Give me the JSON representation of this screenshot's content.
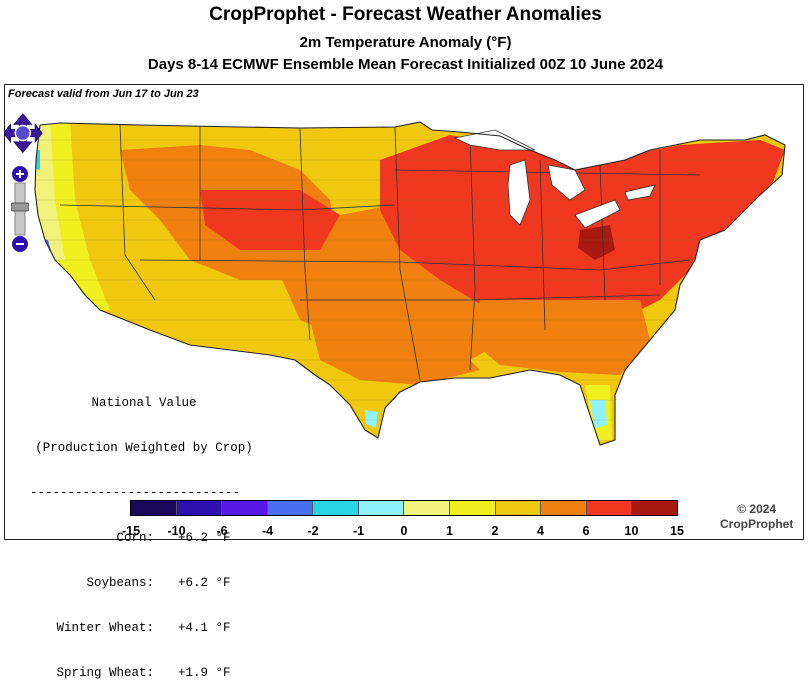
{
  "header": {
    "title": "CropProphet - Forecast Weather Anomalies",
    "variable": "2m Temperature Anomaly (°F)",
    "forecast": "Days 8-14 ECMWF Ensemble Mean Forecast Initialized 00Z 10 June 2024"
  },
  "map": {
    "valid_text": "Forecast valid from Jun 17 to Jun 23"
  },
  "national": {
    "heading1": "National Value",
    "heading2": "(Production Weighted by Crop)",
    "divider": "----------------------------",
    "rows": [
      {
        "name": "Corn:",
        "value": "+6.2 °F"
      },
      {
        "name": "Soybeans:",
        "value": "+6.2 °F"
      },
      {
        "name": "Winter Wheat:",
        "value": "+4.1 °F"
      },
      {
        "name": "Spring Wheat:",
        "value": "+1.9 °F"
      }
    ]
  },
  "legend": {
    "ticks": [
      "-15",
      "-10",
      "-6",
      "-4",
      "-2",
      "-1",
      "0",
      "1",
      "2",
      "4",
      "6",
      "10",
      "15"
    ],
    "colors": [
      "#1a0a5e",
      "#2d10b0",
      "#5a18e8",
      "#4a6ef0",
      "#2ad4e8",
      "#8ef2ff",
      "#f2f27a",
      "#f0f020",
      "#f0c810",
      "#f08010",
      "#f03820",
      "#a81a10"
    ]
  },
  "copyright": {
    "line1": "© 2024",
    "line2": "CropProphet"
  },
  "controls": {
    "pan_icon": "four-way-arrow-icon",
    "zoom_in_icon": "plus-icon",
    "zoom_out_icon": "minus-icon"
  }
}
